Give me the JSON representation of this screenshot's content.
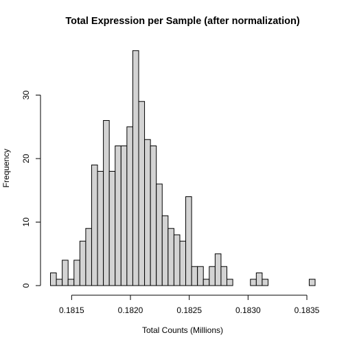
{
  "chart_data": {
    "type": "bar",
    "title": "Total Expression per Sample (after normalization)",
    "xlabel": "Total Counts (Millions)",
    "ylabel": "Frequency",
    "bin_start": 0.18132,
    "bin_width": 5e-05,
    "values": [
      2,
      1,
      4,
      1,
      4,
      7,
      9,
      19,
      18,
      26,
      18,
      22,
      22,
      25,
      37,
      29,
      23,
      22,
      16,
      11,
      9,
      8,
      7,
      14,
      3,
      3,
      1,
      3,
      5,
      3,
      1,
      0,
      0,
      0,
      1,
      2,
      1,
      0,
      0,
      0,
      0,
      0,
      0,
      0,
      1
    ],
    "xlim": [
      0.18132,
      0.18357
    ],
    "ylim": [
      0,
      38
    ],
    "x_ticks": [
      0.1815,
      0.182,
      0.1825,
      0.183,
      0.1835
    ],
    "x_tick_labels": [
      "0.1815",
      "0.1820",
      "0.1825",
      "0.1830",
      "0.1835"
    ],
    "y_ticks": [
      0,
      10,
      20,
      30
    ],
    "y_tick_labels": [
      "0",
      "10",
      "20",
      "30"
    ],
    "bar_fill": "#d3d3d3",
    "bar_stroke": "#000000",
    "grid": false,
    "legend": "none"
  }
}
